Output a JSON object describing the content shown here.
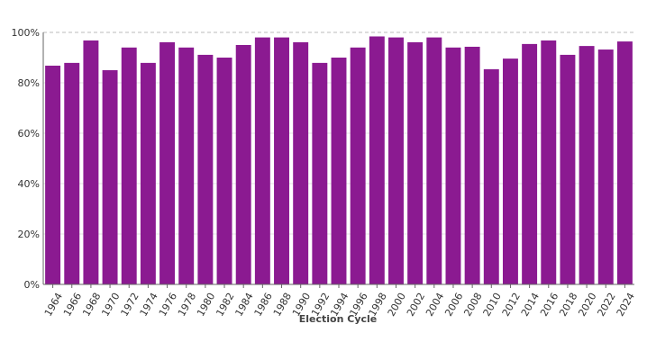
{
  "chart_data": {
    "type": "bar",
    "title": "",
    "xlabel": "Election Cycle",
    "ylabel": "",
    "ylim": [
      0,
      100
    ],
    "y_ticks": [
      0,
      20,
      40,
      60,
      80,
      100
    ],
    "y_tick_suffix": "%",
    "grid": "horizontal",
    "bar_color": "#8b1a91",
    "categories": [
      "1964",
      "1966",
      "1968",
      "1970",
      "1972",
      "1974",
      "1976",
      "1978",
      "1980",
      "1982",
      "1984",
      "1986",
      "1988",
      "1990",
      "1992",
      "1994",
      "1996",
      "1998",
      "2000",
      "2002",
      "2004",
      "2006",
      "2008",
      "2010",
      "2012",
      "2014",
      "2016",
      "2018",
      "2020",
      "2022",
      "2024"
    ],
    "series": [
      {
        "values": [
          86.8,
          87.9,
          96.8,
          85.0,
          94.0,
          87.9,
          96.1,
          94.0,
          91.1,
          90.0,
          95.0,
          98.0,
          98.0,
          96.1,
          87.9,
          90.0,
          94.0,
          98.4,
          98.0,
          96.1,
          98.0,
          94.0,
          94.3,
          85.4,
          89.6,
          95.4,
          96.8,
          91.1,
          94.6,
          93.2,
          96.4
        ]
      }
    ]
  }
}
